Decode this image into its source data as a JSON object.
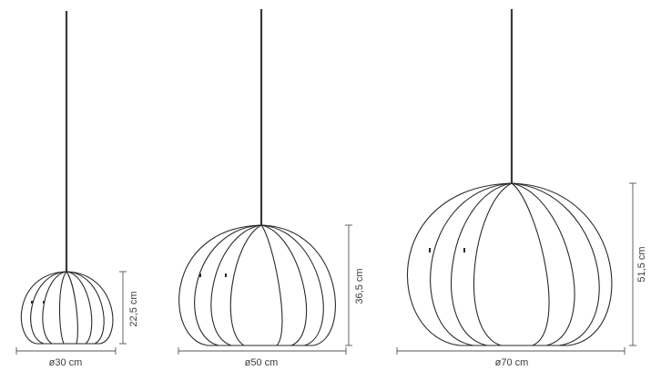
{
  "lamps": [
    {
      "id": "small",
      "diameter_label": "ø30 cm",
      "height_label": "22,5 cm"
    },
    {
      "id": "medium",
      "diameter_label": "ø50 cm",
      "height_label": "36,5  cm"
    },
    {
      "id": "large",
      "diameter_label": "ø70 cm",
      "height_label": "51,5 cm"
    }
  ],
  "colors": {
    "line": "#2a2a2a",
    "dimension": "#555555",
    "text": "#3c3c3c",
    "background": "#ffffff"
  }
}
